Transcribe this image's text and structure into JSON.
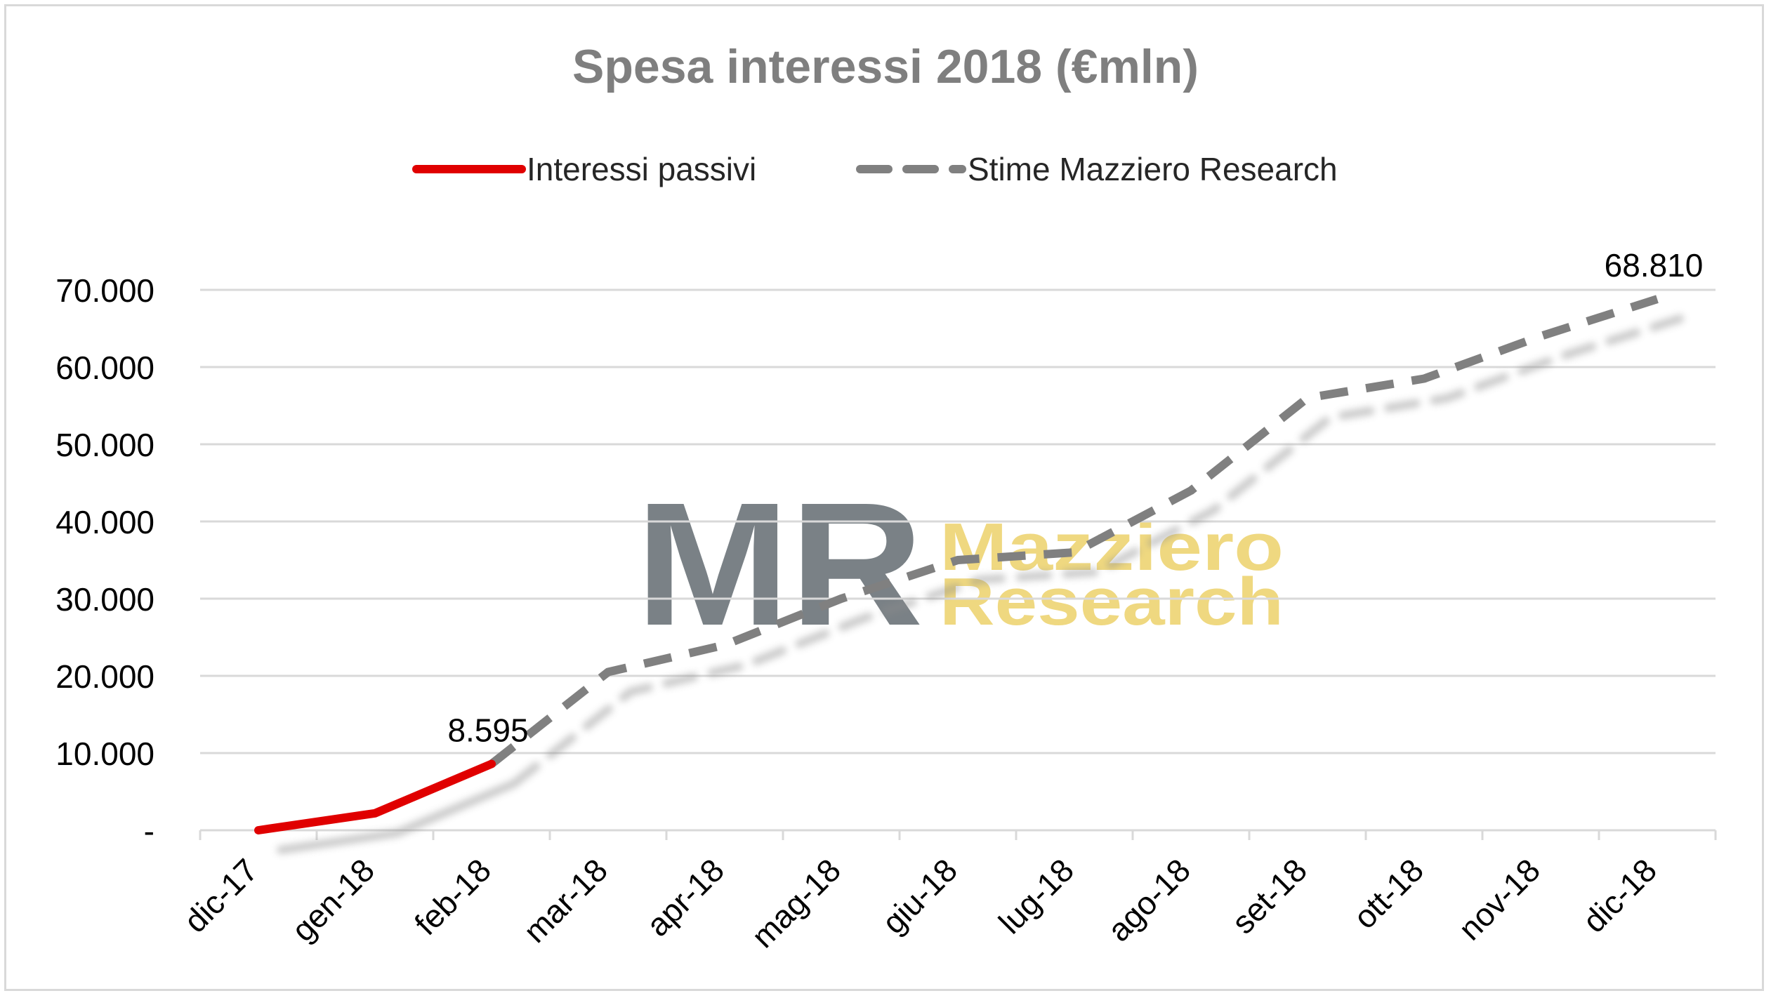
{
  "chart_data": {
    "type": "line",
    "title": "Spesa interessi 2018 (€mln)",
    "categories": [
      "dic-17",
      "gen-18",
      "feb-18",
      "mar-18",
      "apr-18",
      "mag-18",
      "giu-18",
      "lug-18",
      "ago-18",
      "set-18",
      "ott-18",
      "nov-18",
      "dic-18"
    ],
    "ylim": [
      0,
      70000
    ],
    "yticks": [
      0,
      10000,
      20000,
      30000,
      40000,
      50000,
      60000,
      70000
    ],
    "ytick_labels": [
      "-",
      "10.000",
      "20.000",
      "30.000",
      "40.000",
      "50.000",
      "60.000",
      "70.000"
    ],
    "grid": true,
    "legend_position": "top",
    "series": [
      {
        "name": "Interessi passivi",
        "color": "#e00000",
        "style": "solid",
        "values": [
          0,
          2200,
          8595,
          null,
          null,
          null,
          null,
          null,
          null,
          null,
          null,
          null,
          null
        ]
      },
      {
        "name": "Stime Mazziero Research",
        "color": "#808080",
        "style": "dashed",
        "values": [
          null,
          null,
          8595,
          20500,
          24000,
          30000,
          35000,
          36000,
          44000,
          56000,
          58500,
          64000,
          68810
        ]
      }
    ],
    "data_labels": [
      {
        "category": "feb-18",
        "value": 8595,
        "text": "8.595"
      },
      {
        "category": "dic-18",
        "value": 68810,
        "text": "68.810"
      }
    ]
  },
  "watermark": {
    "letters": "MR",
    "line1": "Mazziero",
    "line2": "Research",
    "letters_color": "#737b80",
    "text_color": "#efd67a"
  }
}
